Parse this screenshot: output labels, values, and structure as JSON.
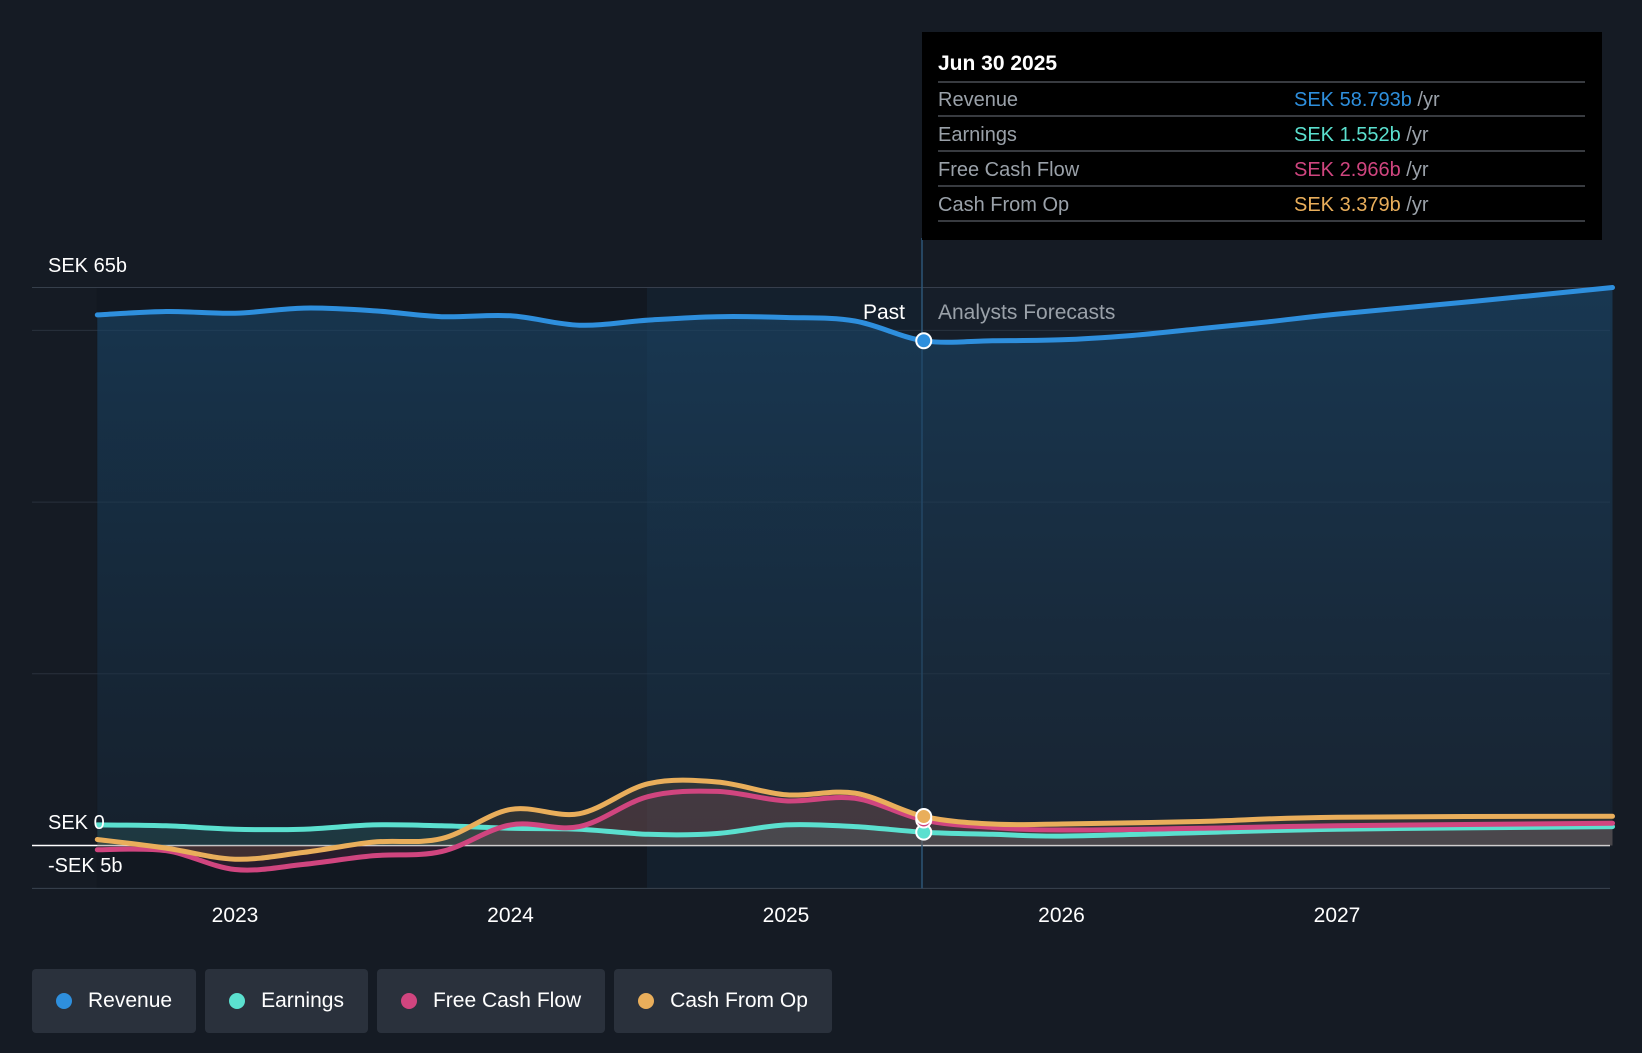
{
  "chart_data": {
    "type": "line",
    "x_axis": {
      "ticks": [
        "2023",
        "2024",
        "2025",
        "2026",
        "2027"
      ]
    },
    "y_axis": {
      "unit": "SEK",
      "label_top": "SEK 65b",
      "label_zero": "SEK 0",
      "label_bottom": "-SEK 5b",
      "ylim": [
        -5,
        65
      ]
    },
    "regions": {
      "past_label": "Past",
      "forecast_label": "Analysts Forecasts"
    },
    "series": [
      {
        "name": "Revenue",
        "color": "#2e8fdd",
        "points": [
          [
            2022.5,
            61.8
          ],
          [
            2022.75,
            62.2
          ],
          [
            2023.0,
            62.0
          ],
          [
            2023.25,
            62.6
          ],
          [
            2023.5,
            62.3
          ],
          [
            2023.75,
            61.6
          ],
          [
            2024.0,
            61.7
          ],
          [
            2024.25,
            60.6
          ],
          [
            2024.5,
            61.2
          ],
          [
            2024.75,
            61.6
          ],
          [
            2025.0,
            61.5
          ],
          [
            2025.25,
            61.1
          ],
          [
            2025.5,
            58.793
          ],
          [
            2025.75,
            58.8
          ],
          [
            2026.0,
            58.9
          ],
          [
            2026.25,
            59.4
          ],
          [
            2026.5,
            60.2
          ],
          [
            2026.75,
            61.0
          ],
          [
            2027.0,
            61.9
          ],
          [
            2027.5,
            63.4
          ],
          [
            2028.0,
            65.0
          ]
        ]
      },
      {
        "name": "Earnings",
        "color": "#5be0cf",
        "points": [
          [
            2022.5,
            2.4
          ],
          [
            2022.75,
            2.3
          ],
          [
            2023.0,
            1.9
          ],
          [
            2023.25,
            1.9
          ],
          [
            2023.5,
            2.4
          ],
          [
            2023.75,
            2.3
          ],
          [
            2024.0,
            2.0
          ],
          [
            2024.25,
            1.9
          ],
          [
            2024.5,
            1.3
          ],
          [
            2024.75,
            1.4
          ],
          [
            2025.0,
            2.4
          ],
          [
            2025.25,
            2.2
          ],
          [
            2025.5,
            1.552
          ],
          [
            2025.75,
            1.3
          ],
          [
            2026.0,
            1.1
          ],
          [
            2026.5,
            1.5
          ],
          [
            2027.0,
            1.9
          ],
          [
            2028.0,
            2.2
          ]
        ]
      },
      {
        "name": "Free Cash Flow",
        "color": "#d0457f",
        "points": [
          [
            2022.5,
            -0.5
          ],
          [
            2022.75,
            -0.6
          ],
          [
            2023.0,
            -2.8
          ],
          [
            2023.25,
            -2.2
          ],
          [
            2023.5,
            -1.2
          ],
          [
            2023.75,
            -0.7
          ],
          [
            2024.0,
            2.4
          ],
          [
            2024.25,
            2.2
          ],
          [
            2024.5,
            5.7
          ],
          [
            2024.75,
            6.3
          ],
          [
            2025.0,
            5.2
          ],
          [
            2025.25,
            5.5
          ],
          [
            2025.5,
            2.966
          ],
          [
            2025.75,
            2.1
          ],
          [
            2026.0,
            1.8
          ],
          [
            2026.5,
            2.0
          ],
          [
            2027.0,
            2.3
          ],
          [
            2028.0,
            2.6
          ]
        ]
      },
      {
        "name": "Cash From Op",
        "color": "#e9ae5b",
        "points": [
          [
            2022.5,
            0.7
          ],
          [
            2022.75,
            -0.3
          ],
          [
            2023.0,
            -1.6
          ],
          [
            2023.25,
            -0.8
          ],
          [
            2023.5,
            0.4
          ],
          [
            2023.75,
            0.8
          ],
          [
            2024.0,
            4.2
          ],
          [
            2024.25,
            3.7
          ],
          [
            2024.5,
            7.2
          ],
          [
            2024.75,
            7.4
          ],
          [
            2025.0,
            5.9
          ],
          [
            2025.25,
            6.1
          ],
          [
            2025.5,
            3.379
          ],
          [
            2025.75,
            2.5
          ],
          [
            2026.0,
            2.5
          ],
          [
            2026.5,
            2.8
          ],
          [
            2027.0,
            3.3
          ],
          [
            2028.0,
            3.4
          ]
        ]
      }
    ],
    "tooltip": {
      "date": "Jun 30 2025",
      "rows": [
        {
          "label": "Revenue",
          "value": "SEK 58.793b",
          "unit": "/yr",
          "color": "#2e8fdd"
        },
        {
          "label": "Earnings",
          "value": "SEK 1.552b",
          "unit": "/yr",
          "color": "#5be0cf"
        },
        {
          "label": "Free Cash Flow",
          "value": "SEK 2.966b",
          "unit": "/yr",
          "color": "#d0457f"
        },
        {
          "label": "Cash From Op",
          "value": "SEK 3.379b",
          "unit": "/yr",
          "color": "#e9ae5b"
        }
      ]
    },
    "legend": [
      {
        "name": "Revenue",
        "color": "#2e8fdd"
      },
      {
        "name": "Earnings",
        "color": "#5be0cf"
      },
      {
        "name": "Free Cash Flow",
        "color": "#d0457f"
      },
      {
        "name": "Cash From Op",
        "color": "#e9ae5b"
      }
    ]
  }
}
